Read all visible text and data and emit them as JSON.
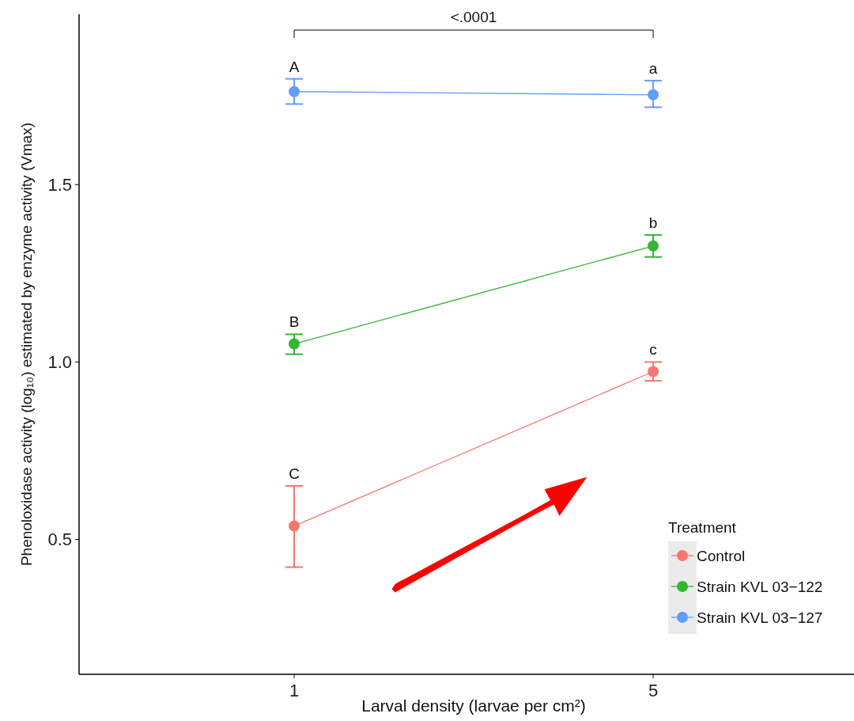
{
  "chart_data": {
    "type": "line",
    "xlabel": "Larval density (larvae per cm²)",
    "ylabel": "Phenoloxidase activity (log₁₀) estimated by enzyme activity (Vmax)",
    "legend_title": "Treatment",
    "categories": [
      "1",
      "5"
    ],
    "ylim": [
      0.12,
      1.98
    ],
    "yticks": [
      {
        "value": 0.5,
        "label": "0.5"
      },
      {
        "value": 1.0,
        "label": "1.0"
      },
      {
        "value": 1.5,
        "label": "1.5"
      }
    ],
    "series": [
      {
        "name": "Control",
        "color": "#f8766d",
        "values": [
          0.538,
          0.973
        ],
        "errors": [
          [
            0.422,
            0.651
          ],
          [
            0.947,
            1.0
          ]
        ]
      },
      {
        "name": "Strain KVL 03−122",
        "color": "#35b535",
        "values": [
          1.051,
          1.327
        ],
        "errors": [
          [
            1.022,
            1.078
          ],
          [
            1.296,
            1.358
          ]
        ]
      },
      {
        "name": "Strain KVL 03−127",
        "color": "#619cff",
        "values": [
          1.762,
          1.753
        ],
        "errors": [
          [
            1.727,
            1.798
          ],
          [
            1.718,
            1.793
          ]
        ]
      }
    ],
    "annotations": [
      "A",
      "a",
      "B",
      "b",
      "C",
      "c",
      "<.0001"
    ],
    "marker": "circle",
    "legend": "bottom right",
    "grid": false
  }
}
